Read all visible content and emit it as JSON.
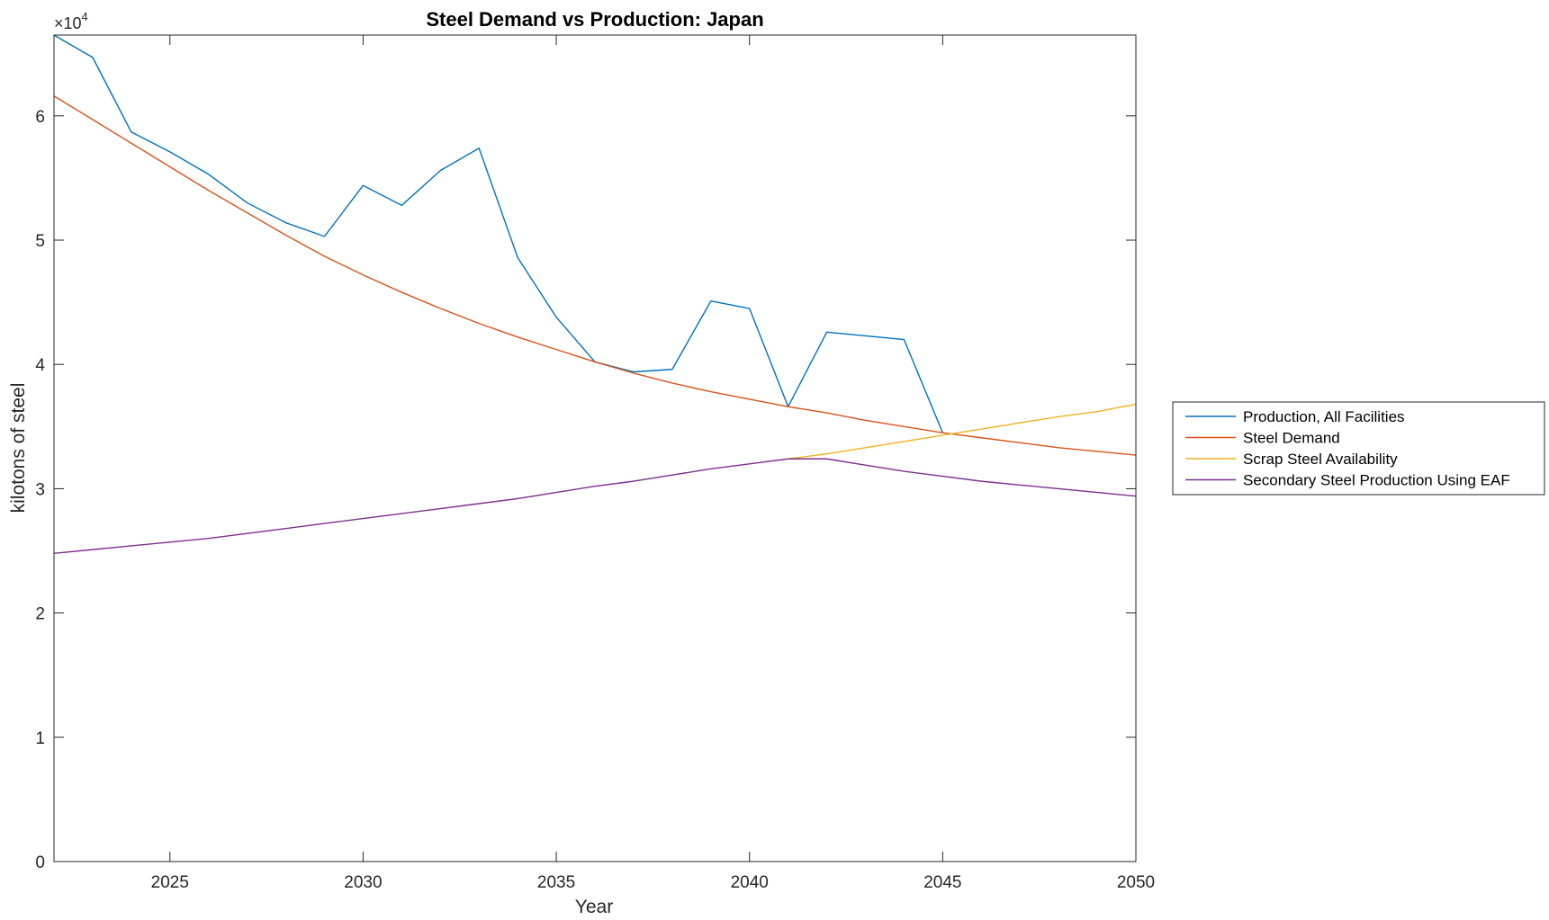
{
  "chart_data": {
    "type": "line",
    "title": "Steel Demand vs Production: Japan",
    "xlabel": "Year",
    "ylabel": "kilotons of steel",
    "xlim": [
      2022,
      2050
    ],
    "ylim": [
      0,
      66500
    ],
    "y_multiplier": {
      "base": "×10",
      "exponent": "4"
    },
    "x_ticks": [
      2025,
      2030,
      2035,
      2040,
      2045,
      2050
    ],
    "x_tick_labels": [
      "2025",
      "2030",
      "2035",
      "2040",
      "2045",
      "2050"
    ],
    "y_ticks": [
      0,
      10000,
      20000,
      30000,
      40000,
      50000,
      60000
    ],
    "y_tick_labels": [
      "0",
      "1",
      "2",
      "3",
      "4",
      "5",
      "6"
    ],
    "grid": false,
    "legend_position": "outside-right",
    "x": [
      2022,
      2023,
      2024,
      2025,
      2026,
      2027,
      2028,
      2029,
      2030,
      2031,
      2032,
      2033,
      2034,
      2035,
      2036,
      2037,
      2038,
      2039,
      2040,
      2041,
      2042,
      2043,
      2044,
      2045,
      2046,
      2047,
      2048,
      2049,
      2050
    ],
    "series": [
      {
        "name": "Production, All Facilities",
        "color": "#0072BD",
        "values": [
          66500,
          64700,
          58700,
          57100,
          55300,
          53000,
          51400,
          50300,
          54400,
          52800,
          55600,
          57400,
          48600,
          43800,
          40200,
          39400,
          39600,
          45100,
          44500,
          36600,
          42600,
          42300,
          42000,
          34500,
          null,
          null,
          null,
          null,
          null
        ]
      },
      {
        "name": "Steel Demand",
        "color": "#D95319",
        "values": [
          61600,
          59700,
          57800,
          55900,
          54000,
          52200,
          50400,
          48700,
          47200,
          45800,
          44500,
          43300,
          42200,
          41200,
          40200,
          39300,
          38500,
          37800,
          37200,
          36600,
          36100,
          35500,
          35000,
          34500,
          34100,
          33700,
          33300,
          33000,
          32700
        ]
      },
      {
        "name": "Scrap Steel Availability",
        "color": "#EDB120",
        "values": [
          null,
          null,
          null,
          null,
          null,
          null,
          null,
          null,
          null,
          null,
          null,
          null,
          null,
          null,
          null,
          null,
          null,
          null,
          null,
          32400,
          32800,
          33300,
          33800,
          34300,
          34800,
          35300,
          35800,
          36200,
          36800
        ]
      },
      {
        "name": "Secondary Steel Production Using EAF",
        "color": "#7E2F8E",
        "values": [
          24800,
          25100,
          25400,
          25700,
          26000,
          26400,
          26800,
          27200,
          27600,
          28000,
          28400,
          28800,
          29200,
          29700,
          30200,
          30600,
          31100,
          31600,
          32000,
          32400,
          32400,
          31900,
          31400,
          31000,
          30600,
          30300,
          30000,
          29700,
          29400
        ]
      }
    ]
  }
}
